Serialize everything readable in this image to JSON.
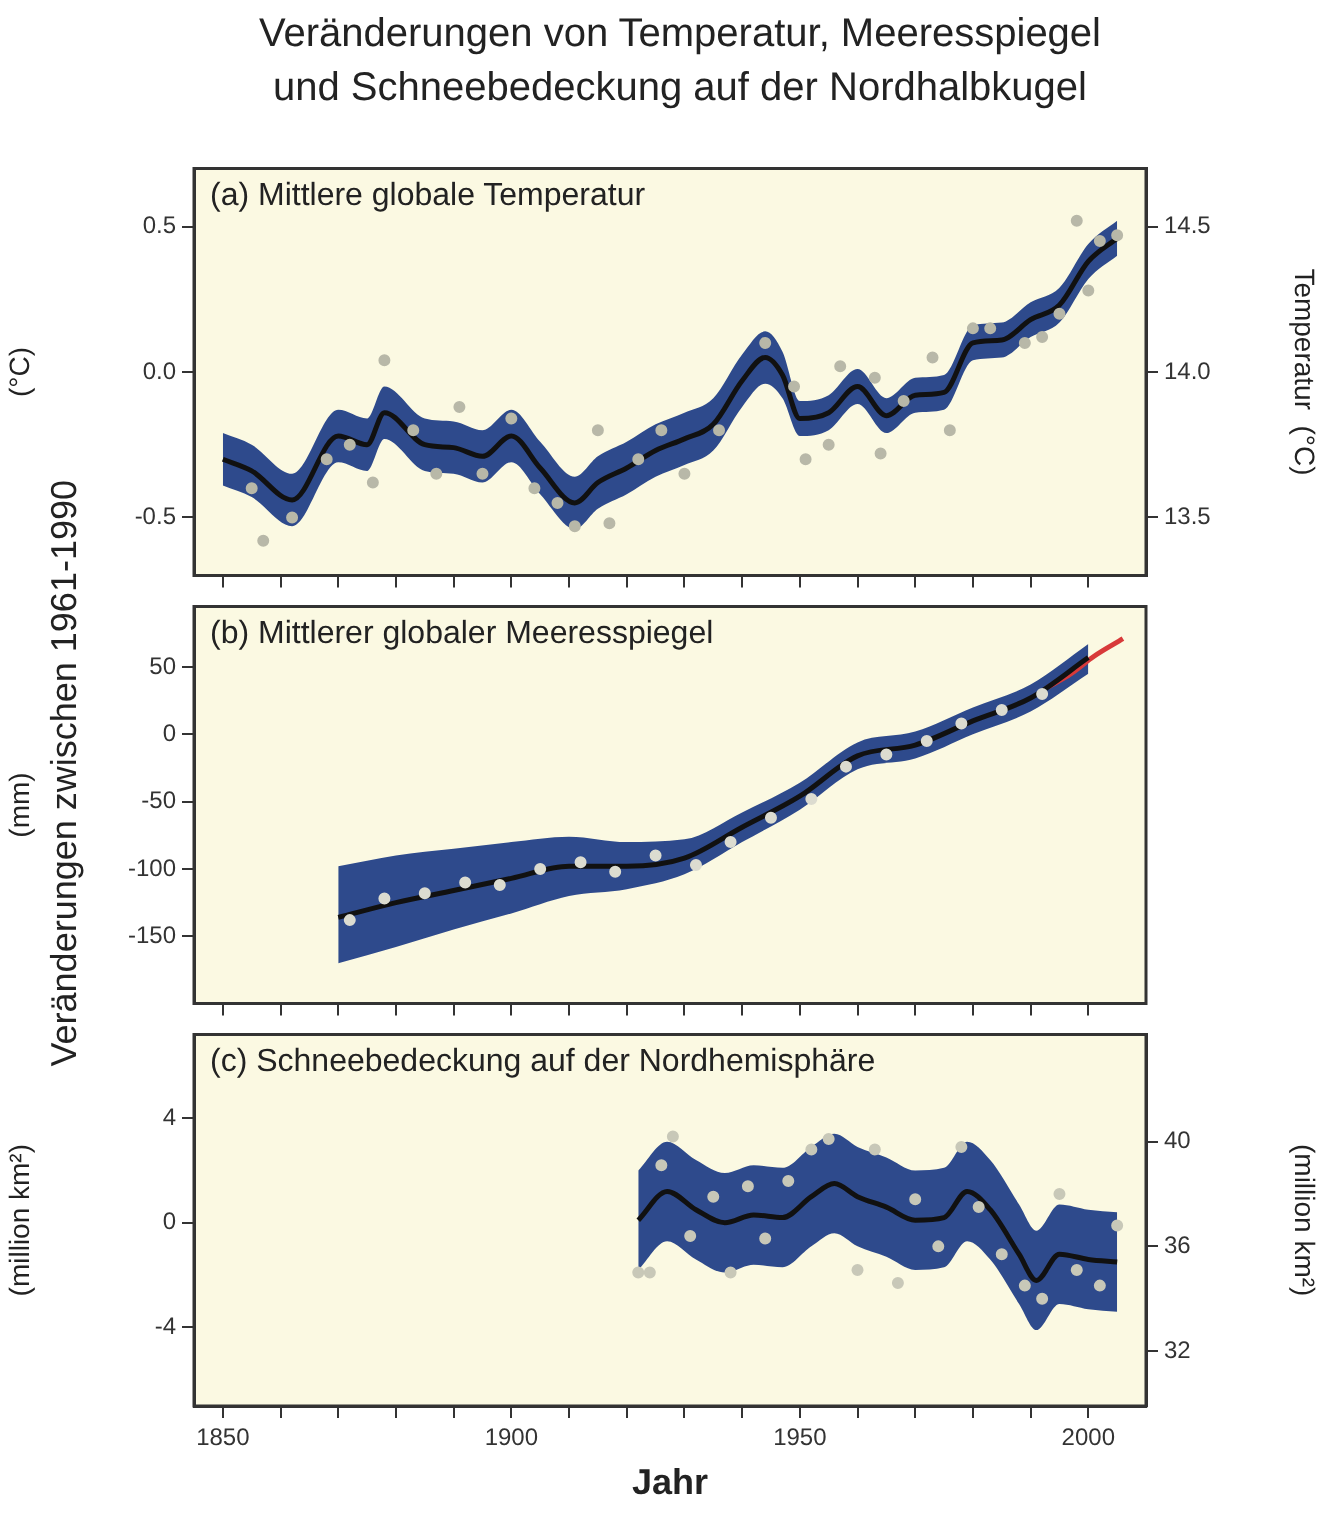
{
  "chart_data": [
    {
      "type": "line",
      "title": "Veränderungen von Temperatur, Meeresspiegel\nund Schneebedeckung auf der Nordhalbkugel",
      "subtitle": "(a) Mittlere globale Temperatur",
      "ylabel": "(°C)",
      "y2label": "Temperatur  (°C)",
      "grid": false,
      "tick_labels": "y",
      "xlim": [
        1845,
        2010
      ],
      "xticks": [
        {
          "value": 1850,
          "label": null
        },
        {
          "value": 1860,
          "label": null
        },
        {
          "value": 1870,
          "label": null
        },
        {
          "value": 1880,
          "label": null
        },
        {
          "value": 1890,
          "label": null
        },
        {
          "value": 1900,
          "label": null
        },
        {
          "value": 1910,
          "label": null
        },
        {
          "value": 1920,
          "label": null
        },
        {
          "value": 1930,
          "label": null
        },
        {
          "value": 1940,
          "label": null
        },
        {
          "value": 1950,
          "label": null
        },
        {
          "value": 1960,
          "label": null
        },
        {
          "value": 1970,
          "label": null
        },
        {
          "value": 1980,
          "label": null
        },
        {
          "value": 1990,
          "label": null
        },
        {
          "value": 2000,
          "label": null
        }
      ],
      "ylim": [
        -0.7,
        0.7
      ],
      "yticks": [
        {
          "value": -0.5,
          "label": "-0.5"
        },
        {
          "value": 0,
          "label": "0.0"
        },
        {
          "value": 0.5,
          "label": "0.5"
        }
      ],
      "y2lim": [
        13.3,
        14.7
      ],
      "y2ticks": [
        13.5,
        {
          "value": 14,
          "label": "14.0"
        },
        14.5
      ],
      "series": [
        {
          "type": "scatter",
          "color": "#b8b8a8",
          "marker": "circle",
          "x": [
            1855,
            1857,
            1862,
            1868,
            1872,
            1876,
            1878,
            1883,
            1887,
            1891,
            1895,
            1900,
            1904,
            1908,
            1911,
            1915,
            1917,
            1922,
            1926,
            1930,
            1936,
            1944,
            1949,
            1951,
            1955,
            1957,
            1963,
            1964,
            1968,
            1973,
            1976,
            1980,
            1983,
            1989,
            1992,
            1995,
            1998,
            2000,
            2002,
            2005
          ],
          "values": [
            -0.4,
            -0.58,
            -0.5,
            -0.3,
            -0.25,
            -0.38,
            0.04,
            -0.2,
            -0.35,
            -0.12,
            -0.35,
            -0.16,
            -0.4,
            -0.45,
            -0.53,
            -0.2,
            -0.52,
            -0.3,
            -0.2,
            -0.35,
            -0.2,
            0.1,
            -0.05,
            -0.3,
            -0.25,
            0.02,
            -0.02,
            -0.28,
            -0.1,
            0.05,
            -0.2,
            0.15,
            0.15,
            0.1,
            0.12,
            0.2,
            0.52,
            0.28,
            0.45,
            0.47
          ]
        },
        {
          "type": "line",
          "color": "#111111",
          "x": [
            1850,
            1855,
            1862,
            1870,
            1875,
            1878,
            1885,
            1890,
            1895,
            1900,
            1905,
            1911,
            1915,
            1920,
            1925,
            1930,
            1935,
            1940,
            1944,
            1947,
            1950,
            1955,
            1960,
            1965,
            1970,
            1975,
            1980,
            1985,
            1990,
            1995,
            2000,
            2005
          ],
          "values": [
            -0.3,
            -0.34,
            -0.44,
            -0.22,
            -0.25,
            -0.14,
            -0.25,
            -0.26,
            -0.29,
            -0.22,
            -0.33,
            -0.45,
            -0.38,
            -0.33,
            -0.27,
            -0.23,
            -0.18,
            -0.03,
            0.05,
            -0.01,
            -0.16,
            -0.14,
            -0.05,
            -0.15,
            -0.08,
            -0.07,
            0.1,
            0.11,
            0.18,
            0.23,
            0.38,
            0.46
          ],
          "lower": [
            -0.39,
            -0.43,
            -0.53,
            -0.31,
            -0.34,
            -0.23,
            -0.34,
            -0.35,
            -0.38,
            -0.31,
            -0.42,
            -0.54,
            -0.47,
            -0.42,
            -0.36,
            -0.32,
            -0.27,
            -0.12,
            -0.04,
            -0.09,
            -0.22,
            -0.2,
            -0.11,
            -0.21,
            -0.14,
            -0.13,
            0.04,
            0.05,
            0.12,
            0.17,
            0.32,
            0.4
          ],
          "upper": [
            -0.21,
            -0.25,
            -0.35,
            -0.13,
            -0.16,
            -0.05,
            -0.16,
            -0.17,
            -0.2,
            -0.13,
            -0.24,
            -0.36,
            -0.29,
            -0.24,
            -0.18,
            -0.14,
            -0.09,
            0.06,
            0.14,
            0.07,
            -0.1,
            -0.08,
            0.01,
            -0.09,
            -0.02,
            -0.01,
            0.16,
            0.17,
            0.24,
            0.29,
            0.44,
            0.52
          ]
        }
      ]
    },
    {
      "type": "line",
      "subtitle": "(b) Mittlerer globaler Meeresspiegel",
      "ylabel": "(mm)",
      "annotations": [
        "Veränderungen zwischen 1961-1990"
      ],
      "grid": false,
      "tick_labels": "y",
      "xlim": [
        1845,
        2010
      ],
      "xticks": [
        {
          "value": 1850,
          "label": null
        },
        {
          "value": 1860,
          "label": null
        },
        {
          "value": 1870,
          "label": null
        },
        {
          "value": 1880,
          "label": null
        },
        {
          "value": 1890,
          "label": null
        },
        {
          "value": 1900,
          "label": null
        },
        {
          "value": 1910,
          "label": null
        },
        {
          "value": 1920,
          "label": null
        },
        {
          "value": 1930,
          "label": null
        },
        {
          "value": 1940,
          "label": null
        },
        {
          "value": 1950,
          "label": null
        },
        {
          "value": 1960,
          "label": null
        },
        {
          "value": 1970,
          "label": null
        },
        {
          "value": 1980,
          "label": null
        },
        {
          "value": 1990,
          "label": null
        },
        {
          "value": 2000,
          "label": null
        }
      ],
      "ylim": [
        -200,
        95
      ],
      "yticks": [
        -150,
        -100,
        -50,
        0,
        50
      ],
      "series": [
        {
          "type": "line",
          "color": "#111111",
          "x": [
            1870,
            1880,
            1890,
            1900,
            1910,
            1920,
            1930,
            1940,
            1950,
            1960,
            1970,
            1980,
            1990,
            2000
          ],
          "values": [
            -136,
            -125,
            -116,
            -107,
            -98,
            -98,
            -92,
            -69,
            -46,
            -16,
            -8,
            10,
            27,
            57
          ],
          "lower": [
            -170,
            -158,
            -145,
            -133,
            -120,
            -115,
            -104,
            -80,
            -56,
            -26,
            -18,
            0,
            17,
            45
          ],
          "upper": [
            -98,
            -90,
            -85,
            -80,
            -76,
            -80,
            -78,
            -58,
            -36,
            -6,
            2,
            20,
            37,
            67
          ]
        },
        {
          "type": "scatter",
          "color": "#dcdcd0",
          "marker": "circle",
          "x": [
            1872,
            1878,
            1885,
            1892,
            1898,
            1905,
            1912,
            1918,
            1925,
            1932,
            1938,
            1945,
            1952,
            1958,
            1965,
            1972,
            1978,
            1985,
            1992
          ],
          "values": [
            -138,
            -122,
            -118,
            -110,
            -112,
            -100,
            -95,
            -102,
            -90,
            -97,
            -80,
            -62,
            -48,
            -24,
            -15,
            -5,
            8,
            18,
            30
          ]
        },
        {
          "type": "line",
          "color": "#d83a3a",
          "x": [
            1993,
            1997,
            2001,
            2006
          ],
          "values": [
            35,
            45,
            58,
            71
          ]
        }
      ]
    },
    {
      "type": "line",
      "subtitle": "(c) Schneebedeckung auf der Nordhemisphäre",
      "ylabel": "(million km²)",
      "y2label": "(million km²)",
      "xlabel": "Jahr",
      "grid": false,
      "xlim": [
        1845,
        2010
      ],
      "xticks": [
        1850,
        {
          "value": 1860,
          "label": null
        },
        {
          "value": 1870,
          "label": null
        },
        {
          "value": 1880,
          "label": null
        },
        {
          "value": 1890,
          "label": null
        },
        1900,
        {
          "value": 1910,
          "label": null
        },
        {
          "value": 1920,
          "label": null
        },
        {
          "value": 1930,
          "label": null
        },
        {
          "value": 1940,
          "label": null
        },
        1950,
        {
          "value": 1960,
          "label": null
        },
        {
          "value": 1970,
          "label": null
        },
        {
          "value": 1980,
          "label": null
        },
        {
          "value": 1990,
          "label": null
        },
        2000
      ],
      "ylim": [
        -7,
        7.2
      ],
      "yticks": [
        -4,
        0,
        4
      ],
      "y2lim": [
        29.9,
        44.1
      ],
      "y2ticks": [
        32,
        36,
        40
      ],
      "series": [
        {
          "type": "line",
          "color": "#111111",
          "x": [
            1922,
            1927,
            1932,
            1937,
            1942,
            1947,
            1952,
            1956,
            1960,
            1965,
            1970,
            1975,
            1979,
            1983,
            1988,
            1991,
            1995,
            2000,
            2005
          ],
          "values": [
            0.1,
            1.2,
            0.5,
            0.0,
            0.3,
            0.2,
            1.0,
            1.5,
            1.0,
            0.6,
            0.1,
            0.2,
            1.2,
            0.5,
            -1.2,
            -2.2,
            -1.2,
            -1.4,
            -1.5
          ],
          "lower": [
            -1.8,
            -0.7,
            -1.4,
            -1.9,
            -1.6,
            -1.7,
            -0.9,
            -0.4,
            -0.9,
            -1.3,
            -1.8,
            -1.7,
            -0.7,
            -1.4,
            -3.1,
            -4.1,
            -3.1,
            -3.3,
            -3.4
          ],
          "upper": [
            2.0,
            3.1,
            2.4,
            1.9,
            2.2,
            2.1,
            2.9,
            3.4,
            2.9,
            2.5,
            2.0,
            2.1,
            3.1,
            2.4,
            0.7,
            -0.3,
            0.7,
            0.5,
            0.4
          ]
        },
        {
          "type": "scatter",
          "color": "#c8c8b8",
          "marker": "circle",
          "x": [
            1922,
            1924,
            1926,
            1928,
            1931,
            1935,
            1938,
            1941,
            1944,
            1948,
            1952,
            1955,
            1960,
            1963,
            1967,
            1970,
            1974,
            1978,
            1981,
            1985,
            1989,
            1992,
            1995,
            1998,
            2002,
            2005
          ],
          "values": [
            -1.9,
            -1.9,
            2.2,
            3.3,
            -0.5,
            1.0,
            -1.9,
            1.4,
            -0.6,
            1.6,
            2.8,
            3.2,
            -1.8,
            2.8,
            -2.3,
            0.9,
            -0.9,
            2.9,
            0.6,
            -1.2,
            -2.4,
            -2.9,
            1.1,
            -1.8,
            -2.4,
            -0.1
          ]
        }
      ]
    }
  ]
}
